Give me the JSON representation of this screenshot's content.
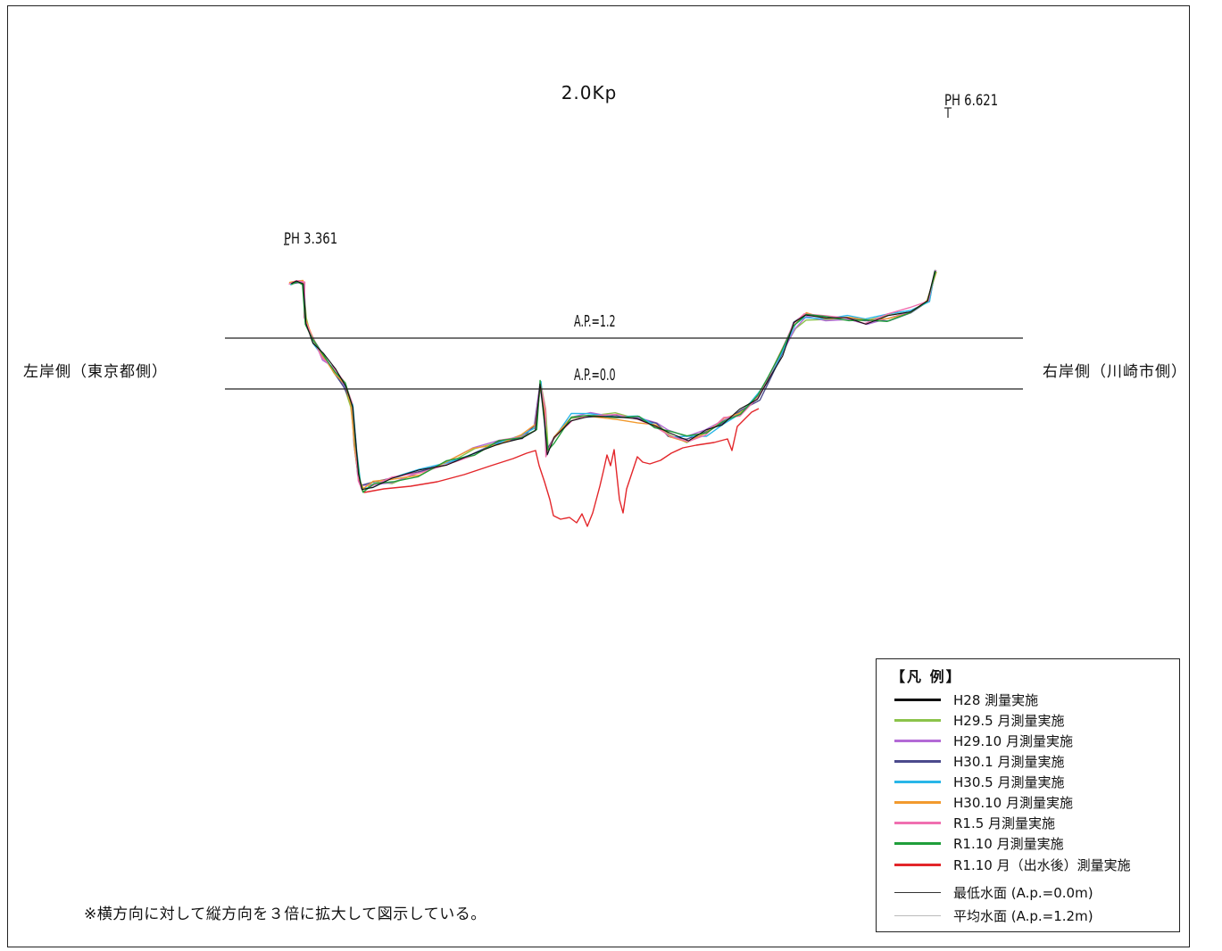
{
  "title": "2.0Kp",
  "left_bank_label": "左岸側（東京都側）",
  "right_bank_label": "右岸側（川崎市側）",
  "left_marker": "PH 3.361",
  "right_marker": "PH 6.621",
  "water_levels": {
    "high_label": "A.P.=1.2",
    "low_label": "A.P.=0.0"
  },
  "note": "※横方向に対して縦方向を３倍に拡大して図示している。",
  "legend": {
    "title": "【凡 例】",
    "items": [
      {
        "label": "H28 測量実施",
        "color": "#111111"
      },
      {
        "label": "H29.5 月測量実施",
        "color": "#8bc34a"
      },
      {
        "label": "H29.10 月測量実施",
        "color": "#b36ad6"
      },
      {
        "label": "H30.1 月測量実施",
        "color": "#4b4a8c"
      },
      {
        "label": "H30.5 月測量実施",
        "color": "#29b6e8"
      },
      {
        "label": "H30.10 月測量実施",
        "color": "#f29a2e"
      },
      {
        "label": "R1.5 月測量実施",
        "color": "#f06fb0"
      },
      {
        "label": "R1.10 月測量実施",
        "color": "#1f9e3a"
      },
      {
        "label": "R1.10 月（出水後）測量実施",
        "color": "#e3262a"
      },
      {
        "label": "最低水面 (A.p.=0.0m)",
        "color": "#333333"
      },
      {
        "label": "平均水面 (A.p.=1.2m)",
        "color": "#bbbbbb"
      }
    ]
  },
  "survey_colors": {
    "pre_flood": [
      "#8bc34a",
      "#b36ad6",
      "#4b4a8c",
      "#29b6e8",
      "#f29a2e",
      "#f06fb0",
      "#1f9e3a",
      "#111111"
    ],
    "post_flood": "#e3262a"
  }
}
